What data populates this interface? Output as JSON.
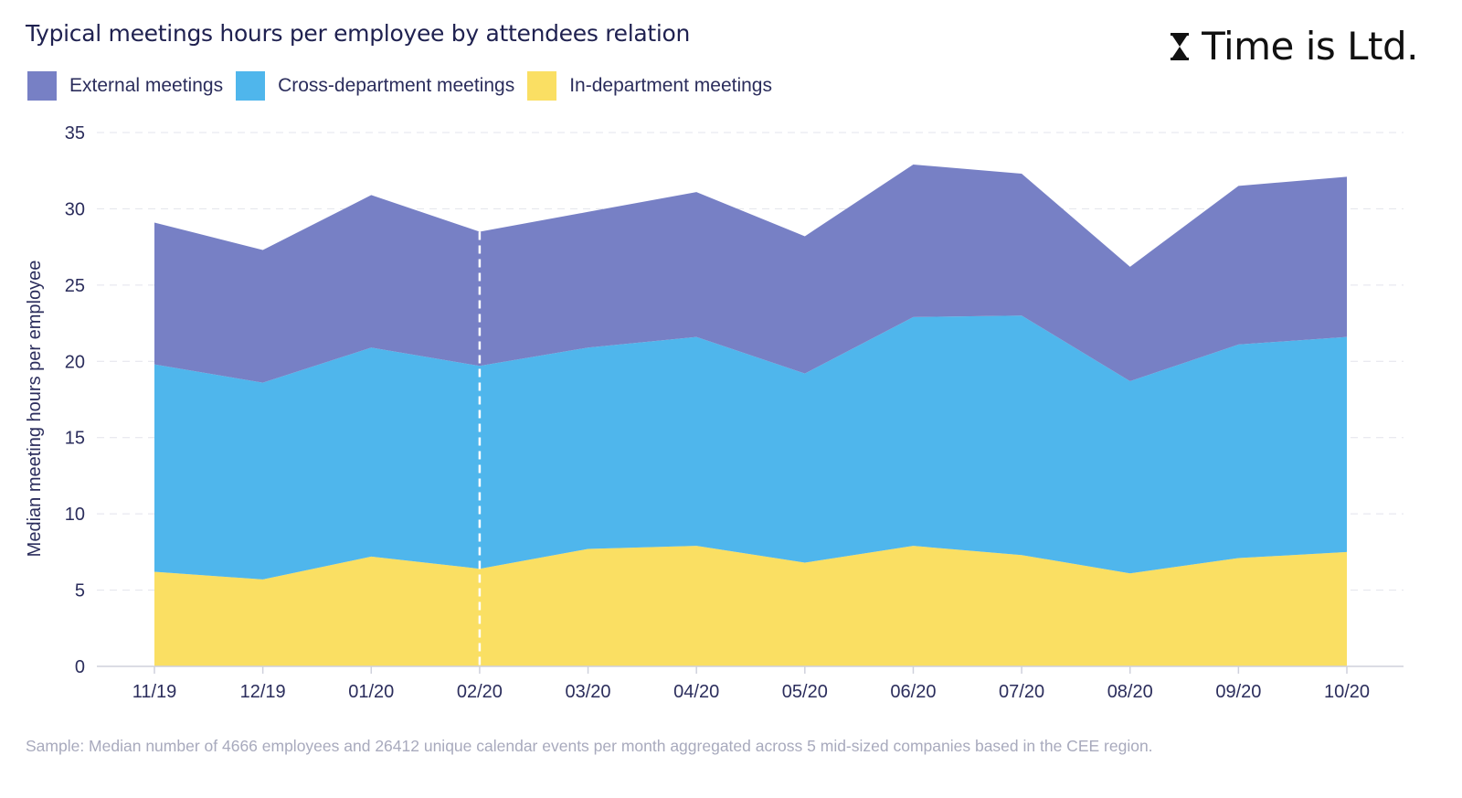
{
  "header": {
    "title": "Typical meetings hours per employee by attendees relation",
    "brand": "Time is Ltd.",
    "brand_icon": "hourglass-icon"
  },
  "footnote": "Sample: Median number of 4666 employees and 26412 unique calendar events per month aggregated across 5 mid-sized companies based in the CEE region.",
  "chart_data": {
    "type": "area",
    "stacked": true,
    "title": "Typical meetings hours per employee by attendees relation",
    "xlabel": "",
    "ylabel": "Median meeting hours per employee",
    "categories": [
      "11/19",
      "12/19",
      "01/20",
      "02/20",
      "03/20",
      "04/20",
      "05/20",
      "06/20",
      "07/20",
      "08/20",
      "09/20",
      "10/20"
    ],
    "ylim": [
      0,
      35
    ],
    "yticks": [
      0,
      5,
      10,
      15,
      20,
      25,
      30,
      35
    ],
    "grid": true,
    "legend_position": "top-left",
    "marker_category": "02/20",
    "series": [
      {
        "name": "In-department meetings",
        "color": "#fadf63",
        "values": [
          6.2,
          5.7,
          7.2,
          6.4,
          7.7,
          7.9,
          6.8,
          7.9,
          7.3,
          6.1,
          7.1,
          7.5
        ]
      },
      {
        "name": "Cross-department meetings",
        "color": "#4fb6ec",
        "values": [
          13.6,
          12.9,
          13.7,
          13.3,
          13.2,
          13.7,
          12.4,
          15.0,
          15.7,
          12.6,
          14.0,
          14.1
        ]
      },
      {
        "name": "External meetings",
        "color": "#7780c5",
        "values": [
          9.3,
          8.7,
          10.0,
          8.8,
          8.9,
          9.5,
          9.0,
          10.0,
          9.3,
          7.5,
          10.4,
          10.5
        ]
      }
    ],
    "legend": [
      "External meetings",
      "Cross-department meetings",
      "In-department meetings"
    ]
  }
}
